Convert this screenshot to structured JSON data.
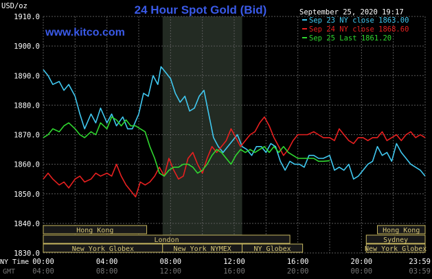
{
  "chart_data": {
    "type": "line",
    "title": "24 Hour Spot Gold (Bid)",
    "watermark": "www.kitco.com",
    "timestamp": "September 25, 2020 19:17",
    "y_unit": "USD/oz",
    "ylim": [
      1830,
      1910
    ],
    "y_ticks": [
      "1910.0",
      "1900.0",
      "1890.0",
      "1880.0",
      "1870.0",
      "1860.0",
      "1850.0",
      "1840.0",
      "1830.0"
    ],
    "y_tick_values": [
      1910,
      1900,
      1890,
      1880,
      1870,
      1860,
      1850,
      1840,
      1830
    ],
    "xlim": [
      0,
      24
    ],
    "x_ticks_ny": [
      "00:00",
      "04:00",
      "08:00",
      "12:00",
      "16:00",
      "20:00",
      "23:59"
    ],
    "x_ticks_gmt": [
      "04:00",
      "08:00",
      "12:00",
      "16:00",
      "20:00",
      "00:00",
      "03:59"
    ],
    "x_tick_hours": [
      0,
      4,
      8,
      12,
      16,
      20,
      24
    ],
    "x_label_ny": "NY Time",
    "x_label_gmt": "GMT",
    "grid": true,
    "legend_position": "top-right",
    "shaded_region_hours": [
      7.5,
      12.5
    ],
    "series": [
      {
        "name": "Sep 23 NY close 1863.00",
        "color": "#40c8f0",
        "points": [
          [
            0,
            1892
          ],
          [
            0.3,
            1890
          ],
          [
            0.6,
            1887
          ],
          [
            1.0,
            1888
          ],
          [
            1.3,
            1885
          ],
          [
            1.6,
            1887
          ],
          [
            2.0,
            1883
          ],
          [
            2.3,
            1877
          ],
          [
            2.6,
            1872
          ],
          [
            3.0,
            1877
          ],
          [
            3.3,
            1874
          ],
          [
            3.6,
            1879
          ],
          [
            4.0,
            1874
          ],
          [
            4.3,
            1877
          ],
          [
            4.6,
            1873
          ],
          [
            5.0,
            1876
          ],
          [
            5.3,
            1872
          ],
          [
            5.6,
            1872
          ],
          [
            6.0,
            1877
          ],
          [
            6.3,
            1884
          ],
          [
            6.6,
            1883
          ],
          [
            6.9,
            1890
          ],
          [
            7.2,
            1887
          ],
          [
            7.4,
            1893
          ],
          [
            7.7,
            1891
          ],
          [
            8.0,
            1889
          ],
          [
            8.3,
            1884
          ],
          [
            8.6,
            1881
          ],
          [
            8.9,
            1883
          ],
          [
            9.2,
            1878
          ],
          [
            9.5,
            1879
          ],
          [
            9.8,
            1883
          ],
          [
            10.1,
            1885
          ],
          [
            10.4,
            1877
          ],
          [
            10.7,
            1869
          ],
          [
            11.0,
            1866
          ],
          [
            11.3,
            1864
          ],
          [
            11.6,
            1866
          ],
          [
            11.9,
            1868
          ],
          [
            12.2,
            1870
          ],
          [
            12.5,
            1866
          ],
          [
            12.8,
            1865
          ],
          [
            13.1,
            1863
          ],
          [
            13.4,
            1866
          ],
          [
            13.7,
            1866
          ],
          [
            14.0,
            1864
          ],
          [
            14.3,
            1867
          ],
          [
            14.6,
            1866
          ],
          [
            14.9,
            1861
          ],
          [
            15.2,
            1858
          ],
          [
            15.5,
            1861
          ],
          [
            15.8,
            1860
          ],
          [
            16.1,
            1860
          ],
          [
            16.4,
            1859
          ],
          [
            16.7,
            1863
          ],
          [
            17.0,
            1863
          ],
          [
            17.3,
            1862
          ],
          [
            17.6,
            1862
          ],
          [
            18.0,
            1863
          ],
          [
            18.3,
            1858
          ],
          [
            18.6,
            1859
          ],
          [
            18.9,
            1858
          ],
          [
            19.2,
            1860
          ],
          [
            19.5,
            1855
          ],
          [
            19.8,
            1856
          ],
          [
            20.1,
            1858
          ],
          [
            20.4,
            1860
          ],
          [
            20.7,
            1861
          ],
          [
            21.0,
            1866
          ],
          [
            21.3,
            1863
          ],
          [
            21.6,
            1864
          ],
          [
            21.9,
            1861
          ],
          [
            22.2,
            1867
          ],
          [
            22.5,
            1864
          ],
          [
            22.8,
            1862
          ],
          [
            23.1,
            1860
          ],
          [
            23.4,
            1859
          ],
          [
            23.7,
            1858
          ],
          [
            24.0,
            1856
          ]
        ]
      },
      {
        "name": "Sep 24 NY close 1868.60",
        "color": "#e82020",
        "points": [
          [
            0,
            1855
          ],
          [
            0.3,
            1857
          ],
          [
            0.6,
            1855
          ],
          [
            1.0,
            1853
          ],
          [
            1.3,
            1854
          ],
          [
            1.6,
            1852
          ],
          [
            2.0,
            1855
          ],
          [
            2.3,
            1856
          ],
          [
            2.6,
            1854
          ],
          [
            3.0,
            1855
          ],
          [
            3.3,
            1857
          ],
          [
            3.6,
            1856
          ],
          [
            4.0,
            1857
          ],
          [
            4.3,
            1856
          ],
          [
            4.6,
            1860
          ],
          [
            4.9,
            1856
          ],
          [
            5.2,
            1853
          ],
          [
            5.5,
            1851
          ],
          [
            5.8,
            1849
          ],
          [
            6.1,
            1854
          ],
          [
            6.4,
            1853
          ],
          [
            6.7,
            1854
          ],
          [
            7.0,
            1856
          ],
          [
            7.3,
            1859
          ],
          [
            7.6,
            1856
          ],
          [
            7.9,
            1862
          ],
          [
            8.2,
            1858
          ],
          [
            8.5,
            1855
          ],
          [
            8.8,
            1856
          ],
          [
            9.1,
            1862
          ],
          [
            9.4,
            1864
          ],
          [
            9.7,
            1860
          ],
          [
            10.0,
            1857
          ],
          [
            10.3,
            1862
          ],
          [
            10.6,
            1866
          ],
          [
            10.9,
            1864
          ],
          [
            11.2,
            1866
          ],
          [
            11.5,
            1868
          ],
          [
            11.8,
            1872
          ],
          [
            12.1,
            1869
          ],
          [
            12.4,
            1866
          ],
          [
            12.7,
            1868
          ],
          [
            13.0,
            1870
          ],
          [
            13.3,
            1871
          ],
          [
            13.6,
            1874
          ],
          [
            13.9,
            1876
          ],
          [
            14.2,
            1873
          ],
          [
            14.5,
            1869
          ],
          [
            14.8,
            1866
          ],
          [
            15.1,
            1863
          ],
          [
            15.4,
            1865
          ],
          [
            15.7,
            1868
          ],
          [
            16.0,
            1870
          ],
          [
            16.3,
            1870
          ],
          [
            16.6,
            1870
          ],
          [
            17.0,
            1871
          ],
          [
            17.3,
            1870
          ],
          [
            17.6,
            1869
          ],
          [
            18.0,
            1869
          ],
          [
            18.3,
            1868
          ],
          [
            18.6,
            1872
          ],
          [
            18.9,
            1870
          ],
          [
            19.2,
            1868
          ],
          [
            19.5,
            1867
          ],
          [
            19.8,
            1869
          ],
          [
            20.1,
            1869
          ],
          [
            20.4,
            1868
          ],
          [
            20.7,
            1869
          ],
          [
            21.0,
            1869
          ],
          [
            21.3,
            1871
          ],
          [
            21.6,
            1868
          ],
          [
            21.9,
            1869
          ],
          [
            22.2,
            1870
          ],
          [
            22.5,
            1868
          ],
          [
            22.8,
            1870
          ],
          [
            23.1,
            1871
          ],
          [
            23.4,
            1869
          ],
          [
            23.7,
            1870
          ],
          [
            24.0,
            1869
          ]
        ]
      },
      {
        "name": "Sep 25 Last 1861.20",
        "color": "#30d830",
        "points": [
          [
            0,
            1869
          ],
          [
            0.3,
            1870
          ],
          [
            0.6,
            1872
          ],
          [
            1.0,
            1871
          ],
          [
            1.3,
            1873
          ],
          [
            1.6,
            1874
          ],
          [
            2.0,
            1872
          ],
          [
            2.3,
            1870
          ],
          [
            2.6,
            1869
          ],
          [
            3.0,
            1871
          ],
          [
            3.3,
            1870
          ],
          [
            3.6,
            1874
          ],
          [
            4.0,
            1872
          ],
          [
            4.3,
            1876
          ],
          [
            4.6,
            1875
          ],
          [
            4.9,
            1873
          ],
          [
            5.2,
            1875
          ],
          [
            5.5,
            1873
          ],
          [
            5.8,
            1873
          ],
          [
            6.1,
            1872
          ],
          [
            6.4,
            1871
          ],
          [
            6.7,
            1866
          ],
          [
            7.0,
            1862
          ],
          [
            7.3,
            1857
          ],
          [
            7.6,
            1856
          ],
          [
            7.9,
            1858
          ],
          [
            8.2,
            1859
          ],
          [
            8.5,
            1859
          ],
          [
            8.8,
            1860
          ],
          [
            9.1,
            1860
          ],
          [
            9.4,
            1859
          ],
          [
            9.7,
            1857
          ],
          [
            10.0,
            1858
          ],
          [
            10.3,
            1860
          ],
          [
            10.6,
            1863
          ],
          [
            10.9,
            1865
          ],
          [
            11.2,
            1864
          ],
          [
            11.5,
            1862
          ],
          [
            11.8,
            1860
          ],
          [
            12.1,
            1863
          ],
          [
            12.4,
            1865
          ],
          [
            12.7,
            1864
          ],
          [
            13.0,
            1865
          ],
          [
            13.3,
            1864
          ],
          [
            13.6,
            1865
          ],
          [
            13.9,
            1866
          ],
          [
            14.2,
            1864
          ],
          [
            14.5,
            1866
          ],
          [
            14.8,
            1864
          ],
          [
            15.1,
            1866
          ],
          [
            15.4,
            1864
          ],
          [
            15.7,
            1863
          ],
          [
            16.0,
            1862
          ],
          [
            16.3,
            1862
          ],
          [
            16.6,
            1862
          ],
          [
            17.0,
            1862
          ],
          [
            17.3,
            1861
          ],
          [
            17.6,
            1861
          ],
          [
            18.0,
            1861.2
          ]
        ]
      }
    ],
    "market_sessions": {
      "row1": [
        {
          "label": "Hong Kong",
          "start": 0,
          "end": 6.5
        },
        {
          "label": "Hong Kong",
          "start": 21,
          "end": 24
        }
      ],
      "row2": [
        {
          "label": "London",
          "start": 0,
          "end": 15.5
        },
        {
          "label": "Sydney",
          "start": 20.3,
          "end": 24
        }
      ],
      "row3": [
        {
          "label": "New York Globex",
          "start": 0,
          "end": 7.5
        },
        {
          "label": "New York NYMEX",
          "start": 7.5,
          "end": 12.5
        },
        {
          "label": "NY Globex",
          "start": 12.5,
          "end": 16.3
        },
        {
          "label": "New York Globex",
          "start": 20.3,
          "end": 24
        }
      ]
    },
    "colors": {
      "background": "#000000",
      "grid": "#5a5a5a",
      "shade": "#232b23",
      "title": "#3a5ae8",
      "watermark": "#3a5ae8",
      "axis_text": "#ffffff",
      "session_fill": "#181818",
      "session_text": "#d8c878",
      "session_border": "#c8b860"
    }
  }
}
